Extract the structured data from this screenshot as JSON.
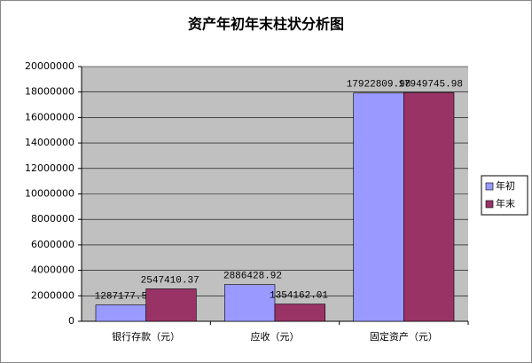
{
  "chart_data": {
    "type": "bar",
    "title": "资产年初年末柱状分析图",
    "categories": [
      "银行存款（元）",
      "应收（元）",
      "固定资产（元）"
    ],
    "series": [
      {
        "name": "年初",
        "color": "#9999ff",
        "values": [
          1287177.53,
          2886428.92,
          17922809.98
        ]
      },
      {
        "name": "年末",
        "color": "#993366",
        "values": [
          2547410.37,
          1354162.01,
          17949745.98
        ]
      }
    ],
    "ylim": [
      0,
      20000000
    ],
    "yticks": [
      0,
      2000000,
      4000000,
      6000000,
      8000000,
      10000000,
      12000000,
      14000000,
      16000000,
      18000000,
      20000000
    ],
    "grid": true,
    "legend": "right"
  }
}
